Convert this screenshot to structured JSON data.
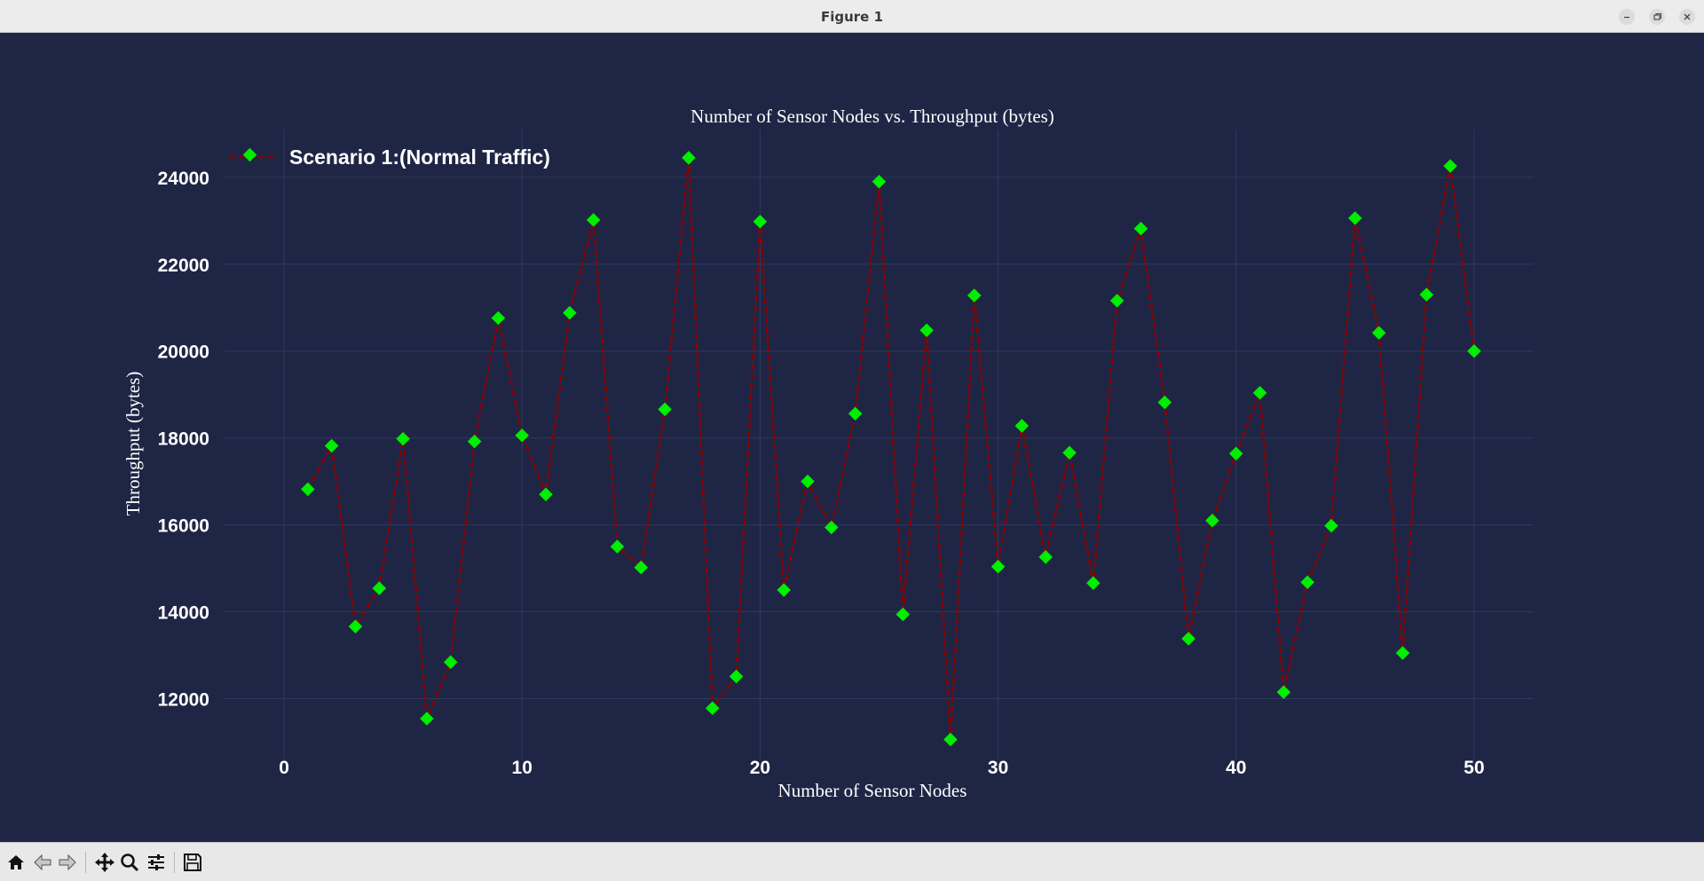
{
  "window": {
    "title": "Figure 1"
  },
  "toolbar": {
    "items": [
      "home-icon",
      "back-icon",
      "forward-icon",
      "pan-icon",
      "zoom-icon",
      "configure-subplots-icon",
      "save-icon"
    ]
  },
  "colors": {
    "background": "#1f2645",
    "line": "#8b0000",
    "marker": "#00ee00",
    "text": "#ffffff",
    "grid": "#2e3a5c"
  },
  "chart_data": {
    "type": "line",
    "title": "Number of Sensor Nodes vs. Throughput (bytes)",
    "xlabel": "Number of Sensor Nodes",
    "ylabel": "Throughput (bytes)",
    "xlim": [
      -2.5,
      52.5
    ],
    "ylim": [
      10600,
      25100
    ],
    "xticks": [
      0,
      10,
      20,
      30,
      40,
      50
    ],
    "yticks": [
      12000,
      14000,
      16000,
      18000,
      20000,
      22000,
      24000
    ],
    "grid": true,
    "legend_position": "top-left",
    "series": [
      {
        "name": "Scenario 1:(Normal Traffic)",
        "line_style": "dashed",
        "marker": "diamond",
        "x": [
          1,
          2,
          3,
          4,
          5,
          6,
          7,
          8,
          9,
          10,
          11,
          12,
          13,
          14,
          15,
          16,
          17,
          18,
          19,
          20,
          21,
          22,
          23,
          24,
          25,
          26,
          27,
          28,
          29,
          30,
          31,
          32,
          33,
          34,
          35,
          36,
          37,
          38,
          39,
          40,
          41,
          42,
          43,
          44,
          45,
          46,
          47,
          48,
          49,
          50
        ],
        "y": [
          16820,
          17820,
          13660,
          14540,
          17980,
          11540,
          12840,
          17920,
          20760,
          18060,
          16700,
          20880,
          23020,
          15500,
          15020,
          18660,
          24450,
          11780,
          12510,
          22980,
          14500,
          17000,
          15940,
          18560,
          23900,
          13940,
          20480,
          11060,
          21280,
          15040,
          18280,
          15260,
          17660,
          14660,
          21160,
          22820,
          18820,
          13380,
          16100,
          17640,
          19040,
          12150,
          14680,
          15980,
          23060,
          20420,
          13050,
          21300,
          24260,
          20000
        ]
      }
    ]
  }
}
